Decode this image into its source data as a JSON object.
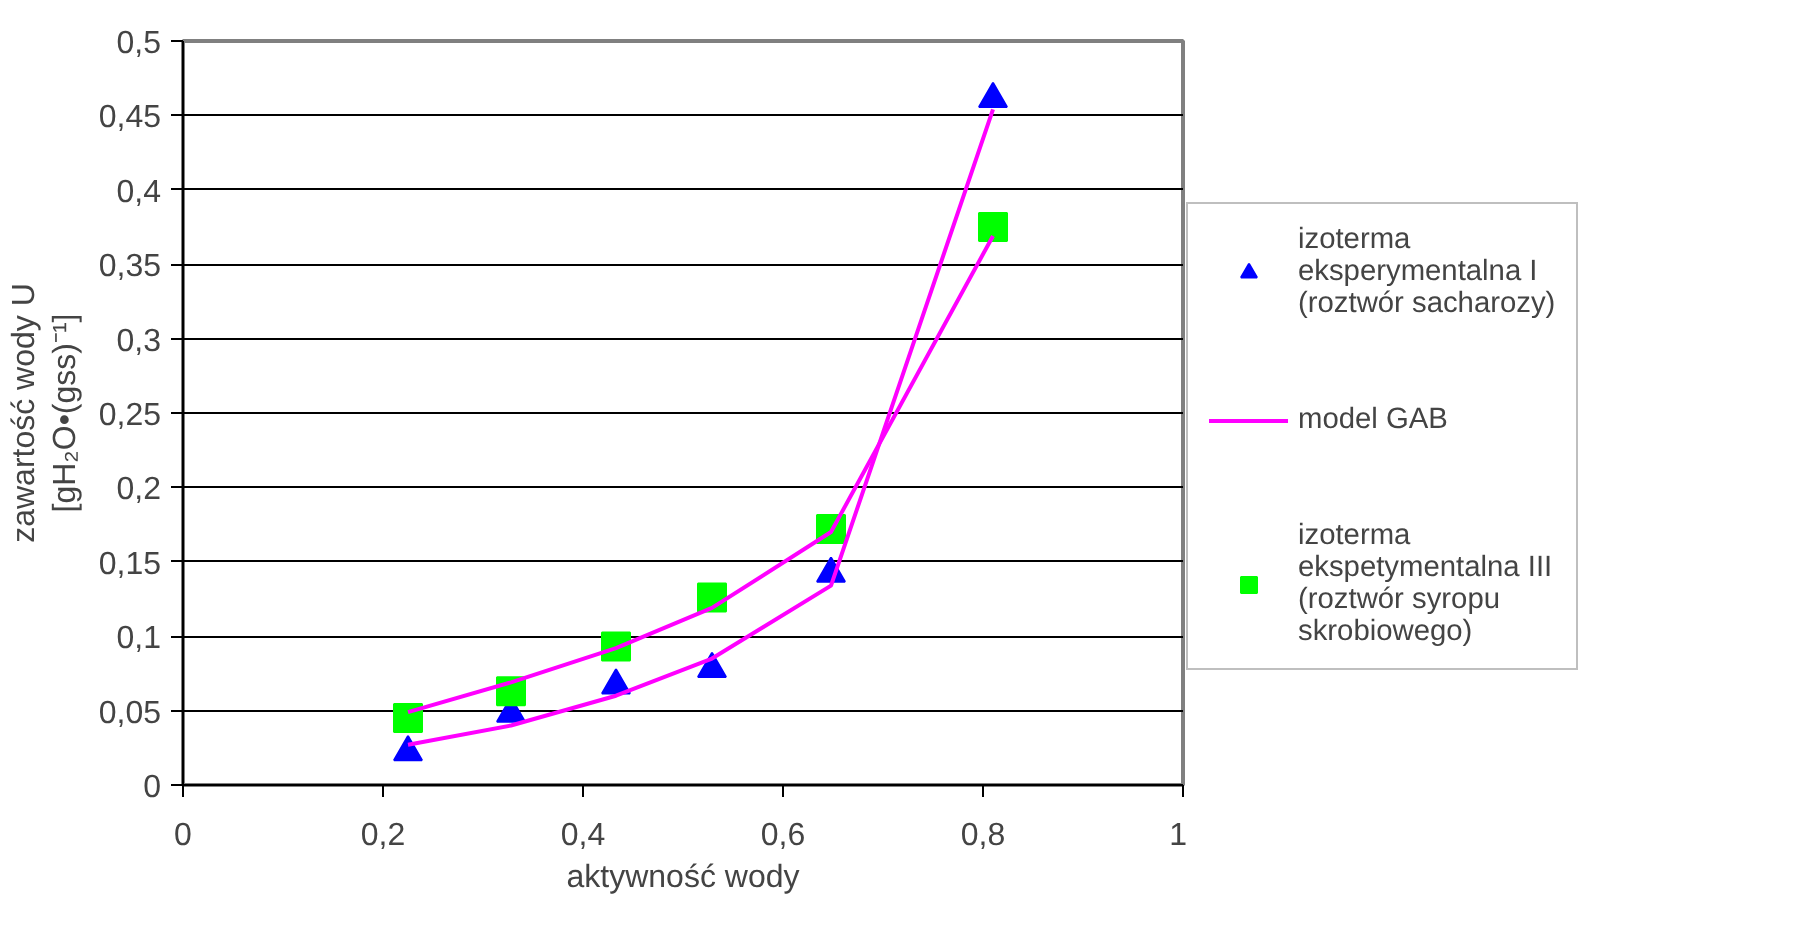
{
  "chart_data": {
    "type": "scatter",
    "xlabel": "aktywność wody",
    "ylabel": "zawartość wody U [gH₂O•(gss)⁻¹]",
    "xlim": [
      0,
      1
    ],
    "ylim": [
      0,
      0.5
    ],
    "xticks": [
      0,
      {
        "value": 0.2,
        "label": "0,2"
      },
      {
        "value": 0.4,
        "label": "0,4"
      },
      {
        "value": 0.6,
        "label": "0,6"
      },
      {
        "value": 0.8,
        "label": "0,8"
      },
      1
    ],
    "yticks": [
      0,
      {
        "value": 0.05,
        "label": "0,05"
      },
      {
        "value": 0.1,
        "label": "0,1"
      },
      {
        "value": 0.15,
        "label": "0,15"
      },
      {
        "value": 0.2,
        "label": "0,2"
      },
      {
        "value": 0.25,
        "label": "0,25"
      },
      {
        "value": 0.3,
        "label": "0,3"
      },
      {
        "value": 0.35,
        "label": "0,35"
      },
      {
        "value": 0.4,
        "label": "0,4"
      },
      {
        "value": 0.45,
        "label": "0,45"
      },
      {
        "value": 0.5,
        "label": "0,5"
      }
    ],
    "grid": "y",
    "legend": "right",
    "series": [
      {
        "name": "izoterma eksperymentalna I (roztwór sacharozy)",
        "marker": "triangle",
        "color": "#0000ff",
        "x": [
          0.225,
          0.328,
          0.433,
          0.529,
          0.648,
          0.81
        ],
        "values": [
          0.022,
          0.048,
          0.067,
          0.078,
          0.142,
          0.461
        ]
      },
      {
        "name": "model GAB",
        "type": "line",
        "marker": "none",
        "color": "#ff00ff",
        "x": [
          0.225,
          0.328,
          0.433,
          0.529,
          0.648,
          0.81
        ],
        "values": [
          0.027,
          0.04,
          0.06,
          0.085,
          0.134,
          0.454
        ]
      },
      {
        "type": "line",
        "marker": "none",
        "color": "#ff00ff",
        "x": [
          0.225,
          0.328,
          0.433,
          0.529,
          0.648,
          0.81
        ],
        "values": [
          0.049,
          0.069,
          0.092,
          0.119,
          0.17,
          0.369
        ]
      },
      {
        "name": "izoterma ekspetymentalna III (roztwór syropu skrobiowego)",
        "marker": "square",
        "color": "#00ff00",
        "x": [
          0.225,
          0.328,
          0.433,
          0.529,
          0.648,
          0.81
        ],
        "values": [
          0.045,
          0.063,
          0.093,
          0.126,
          0.172,
          0.375
        ]
      }
    ]
  }
}
